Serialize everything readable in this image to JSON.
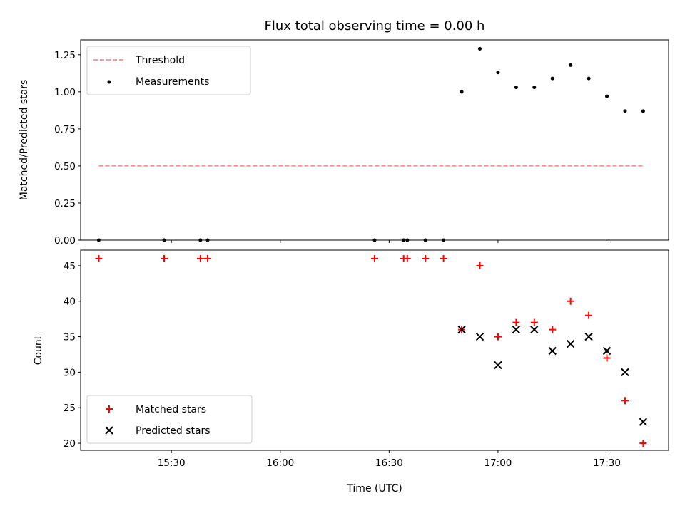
{
  "title": "Flux total observing time = 0.00 h",
  "colors": {
    "threshold": "#ff7f7f",
    "measurement": "#000000",
    "matched": "#ff0000",
    "predicted": "#000000"
  },
  "chart_data": [
    {
      "type": "scatter",
      "title": "Flux total observing time = 0.00 h",
      "ylabel": "Matched/Predicted stars",
      "xlabel": "",
      "xlim": [
        "15:05",
        "17:47"
      ],
      "ylim": [
        0,
        1.35
      ],
      "y_ticks": [
        "0.00",
        "0.25",
        "0.50",
        "0.75",
        "1.00",
        "1.25"
      ],
      "legend": {
        "position": "top-left",
        "entries": [
          "Threshold",
          "Measurements"
        ]
      },
      "threshold": {
        "name": "Threshold",
        "value": 0.5,
        "x": [
          "15:10",
          "17:40"
        ],
        "style": "dashed"
      },
      "series": [
        {
          "name": "Measurements",
          "points": [
            [
              "15:10",
              0
            ],
            [
              "15:28",
              0
            ],
            [
              "15:38",
              0
            ],
            [
              "15:40",
              0
            ],
            [
              "16:26",
              0
            ],
            [
              "16:34",
              0
            ],
            [
              "16:35",
              0
            ],
            [
              "16:40",
              0
            ],
            [
              "16:45",
              0
            ],
            [
              "16:50",
              1.0
            ],
            [
              "16:55",
              1.29
            ],
            [
              "17:00",
              1.13
            ],
            [
              "17:05",
              1.03
            ],
            [
              "17:10",
              1.03
            ],
            [
              "17:15",
              1.09
            ],
            [
              "17:20",
              1.18
            ],
            [
              "17:25",
              1.09
            ],
            [
              "17:30",
              0.97
            ],
            [
              "17:35",
              0.87
            ],
            [
              "17:40",
              0.87
            ]
          ]
        }
      ]
    },
    {
      "type": "scatter",
      "xlabel": "Time (UTC)",
      "ylabel": "Count",
      "xlim": [
        "15:05",
        "17:47"
      ],
      "ylim": [
        19,
        47.2
      ],
      "x_ticks": [
        "15:30",
        "16:00",
        "16:30",
        "17:00",
        "17:30"
      ],
      "y_ticks": [
        "20",
        "25",
        "30",
        "35",
        "40",
        "45"
      ],
      "legend": {
        "position": "bottom-left",
        "entries": [
          "Matched stars",
          "Predicted stars"
        ]
      },
      "series": [
        {
          "name": "Matched stars",
          "marker": "plus",
          "points": [
            [
              "15:10",
              46
            ],
            [
              "15:28",
              46
            ],
            [
              "15:38",
              46
            ],
            [
              "15:40",
              46
            ],
            [
              "16:26",
              46
            ],
            [
              "16:34",
              46
            ],
            [
              "16:35",
              46
            ],
            [
              "16:40",
              46
            ],
            [
              "16:45",
              46
            ],
            [
              "16:50",
              36
            ],
            [
              "16:55",
              45
            ],
            [
              "17:00",
              35
            ],
            [
              "17:05",
              37
            ],
            [
              "17:10",
              37
            ],
            [
              "17:15",
              36
            ],
            [
              "17:20",
              40
            ],
            [
              "17:25",
              38
            ],
            [
              "17:30",
              32
            ],
            [
              "17:35",
              26
            ],
            [
              "17:40",
              20
            ]
          ]
        },
        {
          "name": "Predicted stars",
          "marker": "x",
          "points": [
            [
              "16:50",
              36
            ],
            [
              "16:55",
              35
            ],
            [
              "17:00",
              31
            ],
            [
              "17:05",
              36
            ],
            [
              "17:10",
              36
            ],
            [
              "17:15",
              33
            ],
            [
              "17:20",
              34
            ],
            [
              "17:25",
              35
            ],
            [
              "17:30",
              33
            ],
            [
              "17:35",
              30
            ],
            [
              "17:40",
              23
            ]
          ]
        }
      ]
    }
  ]
}
